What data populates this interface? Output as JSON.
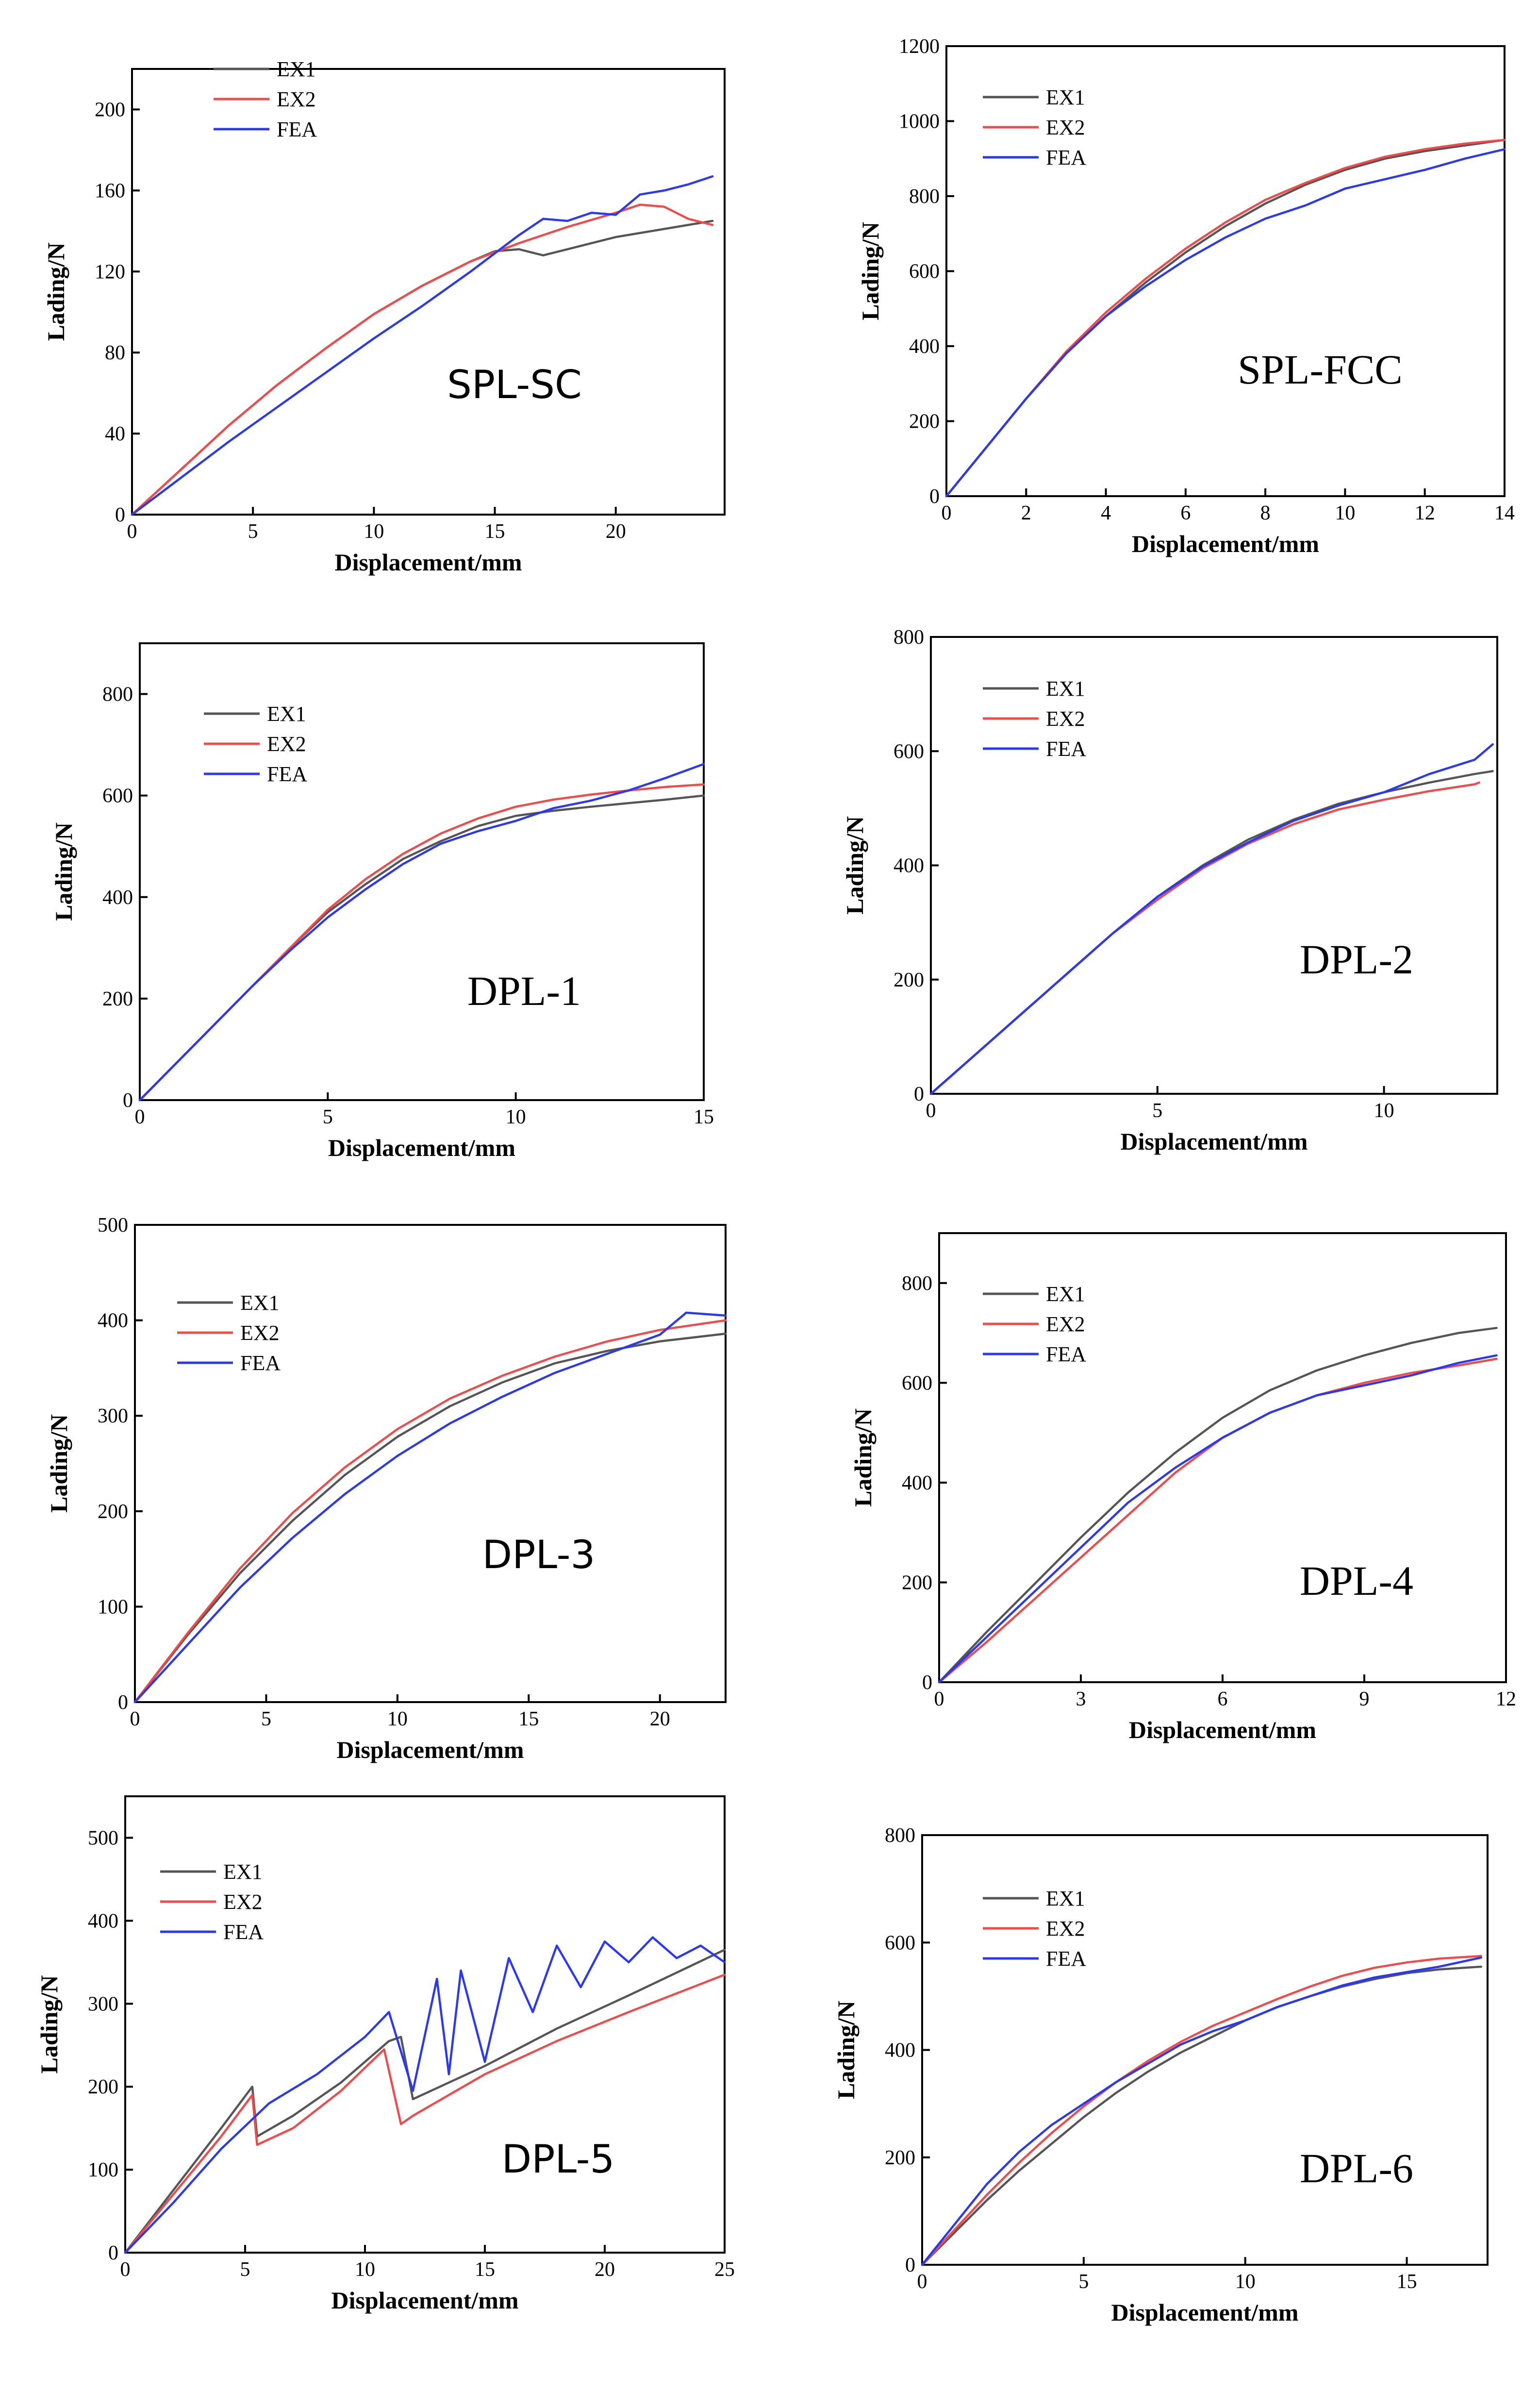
{
  "colors": {
    "EX1": "#555555",
    "EX2": "#ef4b4b",
    "FEA": "#2a37f5"
  },
  "chart_data": [
    {
      "type": "line",
      "title": "SPL-SC",
      "xlabel": "Displacement/mm",
      "ylabel": "Lading/N",
      "xlim": [
        0,
        24.5
      ],
      "ylim": [
        0,
        220
      ],
      "xticks": [
        0,
        5,
        10,
        15,
        20
      ],
      "yticks": [
        0,
        40,
        80,
        120,
        160,
        200
      ],
      "legend": "top-left",
      "series": [
        {
          "name": "EX1",
          "x": [
            0,
            2,
            4,
            6,
            8,
            10,
            12,
            14,
            15,
            16,
            17,
            18,
            20,
            22,
            24
          ],
          "y": [
            0,
            22,
            44,
            64,
            82,
            99,
            113,
            125,
            130,
            131,
            128,
            131,
            137,
            141,
            145
          ]
        },
        {
          "name": "EX2",
          "x": [
            0,
            2,
            4,
            6,
            8,
            10,
            12,
            14,
            16,
            18,
            20,
            21,
            22,
            23,
            24
          ],
          "y": [
            0,
            22,
            44,
            64,
            82,
            99,
            113,
            125,
            134,
            142,
            149,
            153,
            152,
            146,
            143
          ]
        },
        {
          "name": "FEA",
          "x": [
            0,
            2,
            4,
            6,
            8,
            10,
            12,
            14,
            15,
            16,
            17,
            18,
            19,
            20,
            21,
            22,
            23,
            24
          ],
          "y": [
            0,
            18,
            36,
            53,
            70,
            87,
            103,
            120,
            129,
            138,
            146,
            145,
            149,
            148,
            158,
            160,
            163,
            167
          ]
        }
      ]
    },
    {
      "type": "line",
      "title": "SPL-FCC",
      "xlabel": "Displacement/mm",
      "ylabel": "Lading/N",
      "xlim": [
        0,
        14
      ],
      "ylim": [
        0,
        1200
      ],
      "xticks": [
        0,
        2,
        4,
        6,
        8,
        10,
        12,
        14
      ],
      "yticks": [
        0,
        200,
        400,
        600,
        800,
        1000,
        1200
      ],
      "legend": "top-left",
      "series": [
        {
          "name": "EX1",
          "x": [
            0,
            1,
            2,
            3,
            4,
            5,
            6,
            7,
            8,
            9,
            10,
            11,
            12,
            13,
            14
          ],
          "y": [
            0,
            130,
            260,
            380,
            480,
            570,
            650,
            720,
            780,
            830,
            870,
            900,
            920,
            935,
            950
          ]
        },
        {
          "name": "EX2",
          "x": [
            0,
            1,
            2,
            3,
            4,
            5,
            6,
            7,
            8,
            9,
            10,
            11,
            12,
            13,
            14
          ],
          "y": [
            0,
            130,
            260,
            385,
            490,
            580,
            660,
            730,
            790,
            835,
            875,
            905,
            925,
            940,
            950
          ]
        },
        {
          "name": "FEA",
          "x": [
            0,
            1,
            2,
            3,
            4,
            5,
            6,
            7,
            8,
            9,
            10,
            11,
            12,
            13,
            14
          ],
          "y": [
            0,
            130,
            260,
            380,
            480,
            560,
            630,
            690,
            740,
            775,
            820,
            845,
            870,
            900,
            925
          ]
        }
      ]
    },
    {
      "type": "line",
      "title": "DPL-1",
      "xlabel": "Displacement/mm",
      "ylabel": "Lading/N",
      "xlim": [
        0,
        15
      ],
      "ylim": [
        0,
        900
      ],
      "xticks": [
        0,
        5,
        10,
        15
      ],
      "yticks": [
        0,
        200,
        400,
        600,
        800
      ],
      "legend": "top-left",
      "series": [
        {
          "name": "EX1",
          "x": [
            0,
            1,
            2,
            3,
            4,
            5,
            6,
            7,
            8,
            9,
            10,
            11,
            12,
            13,
            14,
            15
          ],
          "y": [
            0,
            75,
            150,
            225,
            300,
            370,
            425,
            475,
            510,
            540,
            560,
            570,
            578,
            585,
            592,
            600
          ]
        },
        {
          "name": "EX2",
          "x": [
            0,
            1,
            2,
            3,
            4,
            5,
            6,
            7,
            8,
            9,
            10,
            11,
            12,
            13,
            14,
            15
          ],
          "y": [
            0,
            75,
            150,
            225,
            300,
            375,
            435,
            485,
            525,
            555,
            578,
            592,
            602,
            610,
            617,
            622
          ]
        },
        {
          "name": "FEA",
          "x": [
            0,
            1,
            2,
            3,
            4,
            5,
            6,
            7,
            8,
            9,
            10,
            11,
            12,
            13,
            14,
            15
          ],
          "y": [
            0,
            75,
            150,
            225,
            295,
            360,
            415,
            465,
            505,
            530,
            550,
            575,
            590,
            610,
            635,
            662
          ]
        }
      ]
    },
    {
      "type": "line",
      "title": "DPL-2",
      "xlabel": "Displacement/mm",
      "ylabel": "Lading/N",
      "xlim": [
        0,
        12.5
      ],
      "ylim": [
        0,
        800
      ],
      "xticks": [
        0,
        5,
        10
      ],
      "yticks": [
        0,
        200,
        400,
        600,
        800
      ],
      "legend": "top-left",
      "series": [
        {
          "name": "EX1",
          "x": [
            0,
            1,
            2,
            3,
            4,
            5,
            6,
            7,
            8,
            9,
            10,
            11,
            12,
            12.4
          ],
          "y": [
            0,
            70,
            140,
            210,
            280,
            345,
            400,
            445,
            480,
            508,
            528,
            545,
            560,
            565
          ]
        },
        {
          "name": "EX2",
          "x": [
            0,
            1,
            2,
            3,
            4,
            5,
            6,
            7,
            8,
            9,
            10,
            11,
            12,
            12.1
          ],
          "y": [
            0,
            70,
            140,
            210,
            280,
            340,
            395,
            438,
            472,
            498,
            515,
            530,
            542,
            545
          ]
        },
        {
          "name": "FEA",
          "x": [
            0,
            1,
            2,
            3,
            4,
            5,
            6,
            7,
            8,
            9,
            10,
            11,
            12,
            12.4
          ],
          "y": [
            0,
            70,
            140,
            210,
            280,
            345,
            398,
            440,
            478,
            505,
            528,
            560,
            585,
            612
          ]
        }
      ]
    },
    {
      "type": "line",
      "title": "DPL-3",
      "xlabel": "Displacement/mm",
      "ylabel": "Lading/N",
      "xlim": [
        0,
        22.5
      ],
      "ylim": [
        0,
        500
      ],
      "xticks": [
        0,
        5,
        10,
        15,
        20
      ],
      "yticks": [
        0,
        100,
        200,
        300,
        400,
        500
      ],
      "legend": "top-left",
      "series": [
        {
          "name": "EX1",
          "x": [
            0,
            2,
            4,
            6,
            8,
            10,
            12,
            14,
            16,
            18,
            20,
            22.5
          ],
          "y": [
            0,
            70,
            135,
            190,
            238,
            278,
            310,
            335,
            355,
            368,
            378,
            386
          ]
        },
        {
          "name": "EX2",
          "x": [
            0,
            2,
            4,
            6,
            8,
            10,
            12,
            14,
            16,
            18,
            20,
            22.5
          ],
          "y": [
            0,
            72,
            140,
            198,
            246,
            286,
            318,
            342,
            362,
            378,
            390,
            400
          ]
        },
        {
          "name": "FEA",
          "x": [
            0,
            2,
            4,
            6,
            8,
            10,
            12,
            14,
            16,
            18,
            20,
            21,
            22.5
          ],
          "y": [
            0,
            60,
            120,
            172,
            218,
            258,
            292,
            320,
            345,
            365,
            385,
            408,
            405
          ]
        }
      ]
    },
    {
      "type": "line",
      "title": "DPL-4",
      "xlabel": "Displacement/mm",
      "ylabel": "Lading/N",
      "xlim": [
        0,
        12
      ],
      "ylim": [
        0,
        900
      ],
      "xticks": [
        0,
        3,
        6,
        9,
        12
      ],
      "yticks": [
        0,
        200,
        400,
        600,
        800
      ],
      "legend": "top-left",
      "series": [
        {
          "name": "EX1",
          "x": [
            0,
            1,
            2,
            3,
            4,
            5,
            6,
            7,
            8,
            9,
            10,
            11,
            11.8
          ],
          "y": [
            0,
            100,
            195,
            290,
            380,
            460,
            530,
            585,
            625,
            655,
            680,
            700,
            710
          ]
        },
        {
          "name": "EX2",
          "x": [
            0,
            1,
            2,
            3,
            4,
            5,
            6,
            7,
            8,
            9,
            10,
            11,
            11.8
          ],
          "y": [
            0,
            80,
            165,
            250,
            335,
            420,
            490,
            540,
            575,
            600,
            620,
            635,
            648
          ]
        },
        {
          "name": "FEA",
          "x": [
            0,
            1,
            2,
            3,
            4,
            5,
            6,
            7,
            8,
            9,
            10,
            11,
            11.8
          ],
          "y": [
            0,
            90,
            180,
            270,
            360,
            430,
            490,
            540,
            575,
            595,
            615,
            640,
            655
          ]
        }
      ]
    },
    {
      "type": "line",
      "title": "DPL-5",
      "xlabel": "Displacement/mm",
      "ylabel": "Lading/N",
      "xlim": [
        0,
        25
      ],
      "ylim": [
        0,
        550
      ],
      "xticks": [
        0,
        5,
        10,
        15,
        20,
        25
      ],
      "yticks": [
        0,
        100,
        200,
        300,
        400,
        500
      ],
      "legend": "top-left",
      "series": [
        {
          "name": "EX1",
          "x": [
            0,
            2,
            4,
            5.3,
            5.5,
            7,
            9,
            11,
            11.5,
            12,
            15,
            18,
            21,
            25
          ],
          "y": [
            0,
            75,
            150,
            200,
            140,
            165,
            205,
            255,
            260,
            185,
            225,
            270,
            310,
            365
          ]
        },
        {
          "name": "EX2",
          "x": [
            0,
            2,
            4,
            5.3,
            5.5,
            7,
            9,
            10.8,
            11.5,
            12,
            15,
            18,
            21,
            25
          ],
          "y": [
            0,
            70,
            140,
            190,
            130,
            150,
            195,
            245,
            155,
            165,
            215,
            255,
            290,
            335
          ]
        },
        {
          "name": "FEA",
          "x": [
            0,
            2,
            4,
            6,
            8,
            10,
            11,
            12,
            13,
            13.5,
            14,
            15,
            16,
            17,
            18,
            19,
            20,
            21,
            22,
            23,
            24,
            25
          ],
          "y": [
            0,
            60,
            125,
            180,
            215,
            260,
            290,
            195,
            330,
            215,
            340,
            230,
            355,
            290,
            370,
            320,
            375,
            350,
            380,
            355,
            370,
            350
          ]
        }
      ]
    },
    {
      "type": "line",
      "title": "DPL-6",
      "xlabel": "Displacement/mm",
      "ylabel": "Lading/N",
      "xlim": [
        0,
        17.5
      ],
      "ylim": [
        0,
        800
      ],
      "xticks": [
        0,
        5,
        10,
        15
      ],
      "yticks": [
        0,
        200,
        400,
        600,
        800
      ],
      "legend": "top-left",
      "series": [
        {
          "name": "EX1",
          "x": [
            0,
            1,
            2,
            3,
            4,
            5,
            6,
            7,
            8,
            9,
            10,
            11,
            12,
            13,
            14,
            15,
            16,
            17.3
          ],
          "y": [
            0,
            60,
            120,
            175,
            225,
            275,
            320,
            360,
            395,
            425,
            455,
            480,
            500,
            518,
            532,
            543,
            550,
            555
          ]
        },
        {
          "name": "EX2",
          "x": [
            0,
            1,
            2,
            3,
            4,
            5,
            6,
            7,
            8,
            9,
            10,
            11,
            12,
            13,
            14,
            15,
            16,
            17.3
          ],
          "y": [
            0,
            65,
            130,
            190,
            245,
            295,
            340,
            380,
            415,
            445,
            470,
            495,
            518,
            538,
            553,
            563,
            570,
            575
          ]
        },
        {
          "name": "FEA",
          "x": [
            0,
            1,
            2,
            3,
            4,
            5,
            6,
            7,
            8,
            9,
            10,
            11,
            12,
            13,
            14,
            15,
            16,
            17.3
          ],
          "y": [
            0,
            75,
            150,
            210,
            260,
            300,
            340,
            375,
            410,
            435,
            455,
            480,
            500,
            520,
            535,
            545,
            555,
            572
          ]
        }
      ]
    }
  ]
}
